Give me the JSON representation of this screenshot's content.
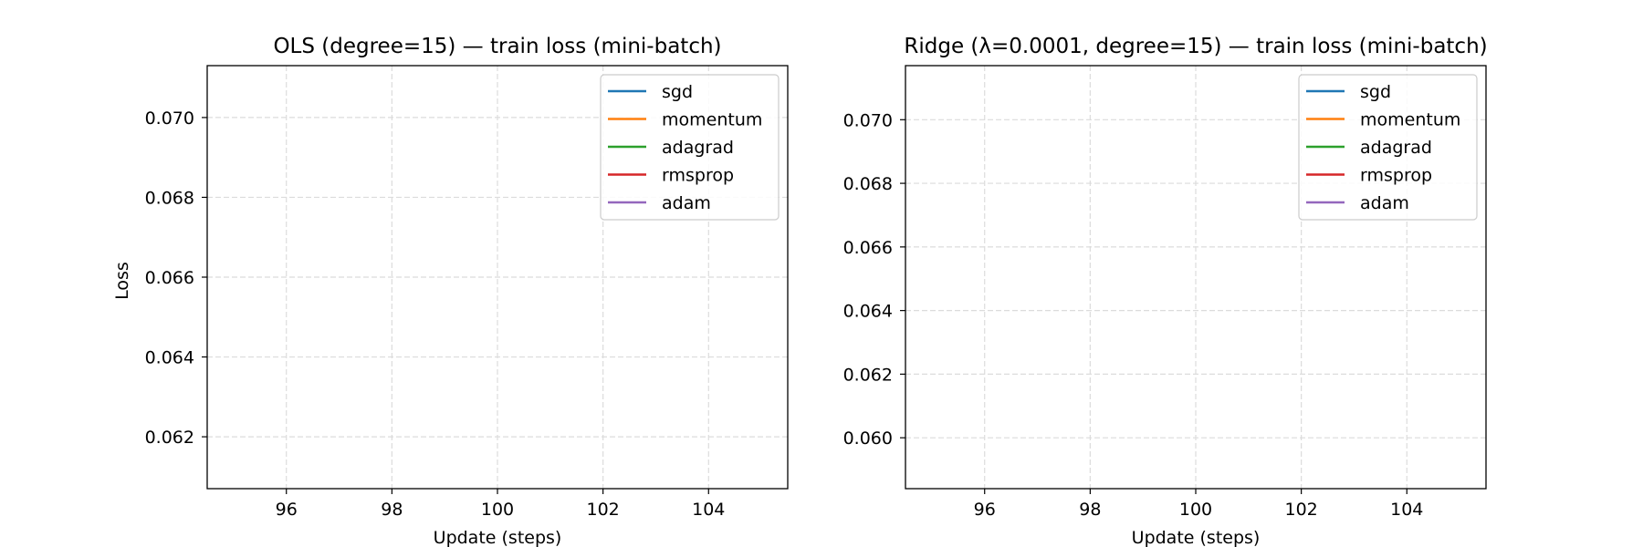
{
  "chart_data": [
    {
      "type": "line",
      "title": "OLS (degree=15) — train loss (mini-batch)",
      "xlabel": "Update (steps)",
      "ylabel": "Loss",
      "xlim": [
        94.5,
        105.5
      ],
      "ylim": [
        0.0607,
        0.0713
      ],
      "xticks": [
        96,
        98,
        100,
        102,
        104
      ],
      "yticks": [
        0.062,
        0.064,
        0.066,
        0.068,
        0.07
      ],
      "ytick_format": 3,
      "grid": true,
      "grid_style": "dashed",
      "legend_position": "upper right",
      "series": [
        {
          "name": "sgd",
          "color": "#1f77b4",
          "x": [],
          "y": []
        },
        {
          "name": "momentum",
          "color": "#ff7f0e",
          "x": [],
          "y": []
        },
        {
          "name": "adagrad",
          "color": "#2ca02c",
          "x": [],
          "y": []
        },
        {
          "name": "rmsprop",
          "color": "#d62728",
          "x": [],
          "y": []
        },
        {
          "name": "adam",
          "color": "#9467bd",
          "x": [],
          "y": []
        }
      ]
    },
    {
      "type": "line",
      "title": "Ridge (λ=0.0001, degree=15) — train loss (mini-batch)",
      "xlabel": "Update (steps)",
      "ylabel": "",
      "xlim": [
        94.5,
        105.5
      ],
      "ylim": [
        0.0584,
        0.0717
      ],
      "xticks": [
        96,
        98,
        100,
        102,
        104
      ],
      "yticks": [
        0.06,
        0.062,
        0.064,
        0.066,
        0.068,
        0.07
      ],
      "ytick_format": 3,
      "grid": true,
      "grid_style": "dashed",
      "legend_position": "upper right",
      "series": [
        {
          "name": "sgd",
          "color": "#1f77b4",
          "x": [],
          "y": []
        },
        {
          "name": "momentum",
          "color": "#ff7f0e",
          "x": [],
          "y": []
        },
        {
          "name": "adagrad",
          "color": "#2ca02c",
          "x": [],
          "y": []
        },
        {
          "name": "rmsprop",
          "color": "#d62728",
          "x": [],
          "y": []
        },
        {
          "name": "adam",
          "color": "#9467bd",
          "x": [],
          "y": []
        }
      ]
    }
  ]
}
